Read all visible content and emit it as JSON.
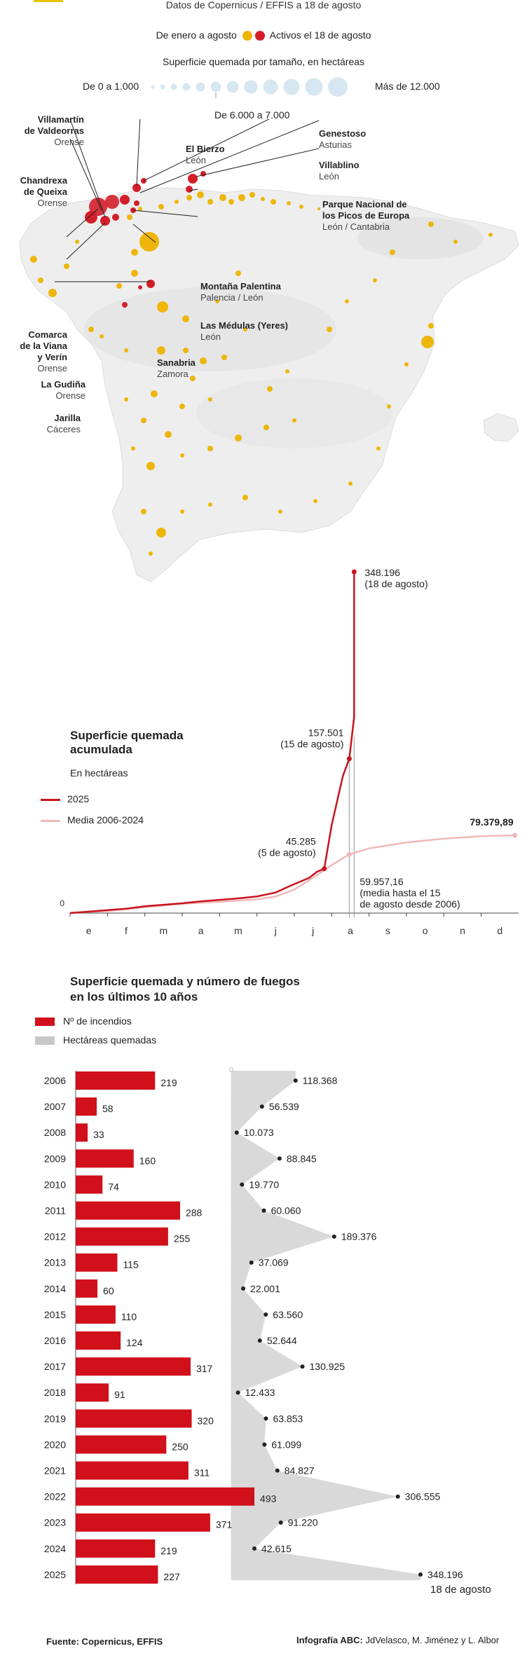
{
  "header": {
    "source_line": "Datos de Copernicus / EFFIS a 18 de agosto",
    "legend_january": "De enero a agosto",
    "legend_active": "Activos el 18 de agosto",
    "size_title": "Superficie quemada por tamaño, en hectáreas",
    "size_min": "De 0 a 1.000",
    "size_max": "Más de 12.000",
    "size_mid": "De 6.000 a 7.000"
  },
  "colors": {
    "fire_yellow": "#efb400",
    "fire_red": "#d41f2b",
    "line_2025": "#c8141e",
    "line_avg": "#f0b9b9",
    "bar_red": "#d0101a",
    "area_grey": "#d9d9d9",
    "map_land": "#eeeeee",
    "bubble": "#d7e7f1"
  },
  "map": {
    "labels": [
      {
        "name": "Villamartín\nde Valdeorras",
        "region": "Orense"
      },
      {
        "name": "El Bierzo",
        "region": "León"
      },
      {
        "name": "Genestoso",
        "region": "Asturias"
      },
      {
        "name": "Chandrexa\nde Queixa",
        "region": "Orense"
      },
      {
        "name": "Villablino",
        "region": "León"
      },
      {
        "name": "Parque Nacional de\nlos Picos de Europa",
        "region": "León / Cantabria"
      },
      {
        "name": "Montaña Palentina",
        "region": "Palencia / León"
      },
      {
        "name": "Las Médulas (Yeres)",
        "region": "León"
      },
      {
        "name": "Comarca\nde la Viana\ny Verín",
        "region": "Orense"
      },
      {
        "name": "Sanabria",
        "region": "Zamora"
      },
      {
        "name": "La Gudiña",
        "region": "Orense"
      },
      {
        "name": "Jarilla",
        "region": "Cáceres"
      }
    ]
  },
  "chart_data": [
    {
      "type": "line",
      "title": "Superficie quemada acumulada",
      "subtitle": "En hectáreas",
      "xlabel": "",
      "ylabel": "",
      "x": [
        "e",
        "f",
        "m",
        "a",
        "m",
        "j",
        "j",
        "a",
        "s",
        "o",
        "n",
        "d"
      ],
      "ylim": [
        0,
        348196
      ],
      "y_zero_label": "0",
      "series": [
        {
          "name": "2025",
          "points": [
            [
              0,
              0
            ],
            [
              0.5,
              1500
            ],
            [
              1,
              3000
            ],
            [
              1.5,
              4500
            ],
            [
              2,
              7000
            ],
            [
              2.5,
              8500
            ],
            [
              3,
              10000
            ],
            [
              3.5,
              12000
            ],
            [
              4,
              13500
            ],
            [
              4.5,
              15000
            ],
            [
              5,
              17000
            ],
            [
              5.5,
              21000
            ],
            [
              5.9,
              28000
            ],
            [
              6.15,
              32000
            ],
            [
              6.4,
              36000
            ],
            [
              6.6,
              42000
            ],
            [
              6.8,
              45285
            ],
            [
              7.0,
              90000
            ],
            [
              7.3,
              140000
            ],
            [
              7.47,
              157501
            ],
            [
              7.6,
              200000
            ],
            [
              7.6,
              348196
            ]
          ]
        },
        {
          "name": "Media 2006-2024",
          "points": [
            [
              0,
              500
            ],
            [
              1,
              2000
            ],
            [
              2,
              6000
            ],
            [
              3,
              9500
            ],
            [
              4,
              11500
            ],
            [
              5,
              14000
            ],
            [
              5.5,
              17000
            ],
            [
              6,
              24000
            ],
            [
              6.5,
              36000
            ],
            [
              7,
              49000
            ],
            [
              7.47,
              59957.16
            ],
            [
              8,
              66000
            ],
            [
              9,
              72000
            ],
            [
              10,
              76000
            ],
            [
              11,
              78500
            ],
            [
              11.9,
              79379.89
            ]
          ]
        }
      ],
      "annotations": [
        {
          "value": "348.196",
          "label": "(18 de agosto)"
        },
        {
          "value": "157.501",
          "label": "(15 de agosto)"
        },
        {
          "value": "45.285",
          "label": "(5 de agosto)"
        },
        {
          "value": "59.957,16",
          "label": "(media hasta el 15",
          "label2": "de agosto desde 2006)"
        },
        {
          "value": "79.379,89"
        }
      ]
    },
    {
      "type": "bar",
      "title": "Superficie quemada y número de fuegos",
      "title2": "en los últimos 10 años",
      "legend": [
        "Nº de incendios",
        "Hectáreas quemadas"
      ],
      "zero_label": "0",
      "categories": [
        "2006",
        "2007",
        "2008",
        "2009",
        "2010",
        "2011",
        "2012",
        "2013",
        "2014",
        "2015",
        "2016",
        "2017",
        "2018",
        "2019",
        "2020",
        "2021",
        "2022",
        "2023",
        "2024",
        "2025"
      ],
      "series": [
        {
          "name": "Nº de incendios",
          "values": [
            219,
            58,
            33,
            160,
            74,
            288,
            255,
            115,
            60,
            110,
            124,
            317,
            91,
            320,
            250,
            311,
            493,
            371,
            219,
            227
          ]
        },
        {
          "name": "Hectáreas quemadas",
          "values": [
            118368,
            56539,
            10073,
            88845,
            19770,
            60060,
            189376,
            37069,
            22001,
            63560,
            52644,
            130925,
            12433,
            63853,
            61099,
            84827,
            306555,
            91220,
            42615,
            348196
          ]
        }
      ],
      "fires_labels": [
        "219",
        "58",
        "33",
        "160",
        "74",
        "288",
        "255",
        "115",
        "60",
        "110",
        "124",
        "317",
        "91",
        "320",
        "250",
        "311",
        "493",
        "371",
        "219",
        "227"
      ],
      "hectares_labels": [
        "118.368",
        "56.539",
        "10.073",
        "88.845",
        "19.770",
        "60.060",
        "189.376",
        "37.069",
        "22.001",
        "63.560",
        "52.644",
        "130.925",
        "12.433",
        "63.853",
        "61.099",
        "84.827",
        "306.555",
        "91.220",
        "42.615",
        "348.196"
      ],
      "last_note": "18 de agosto"
    }
  ],
  "footer": {
    "source": "Fuente: Copernicus, EFFIS",
    "credit_label": "Infografía ABC:",
    "credit_names": "JdVelasco, M. Jiménez y L. Albor"
  }
}
